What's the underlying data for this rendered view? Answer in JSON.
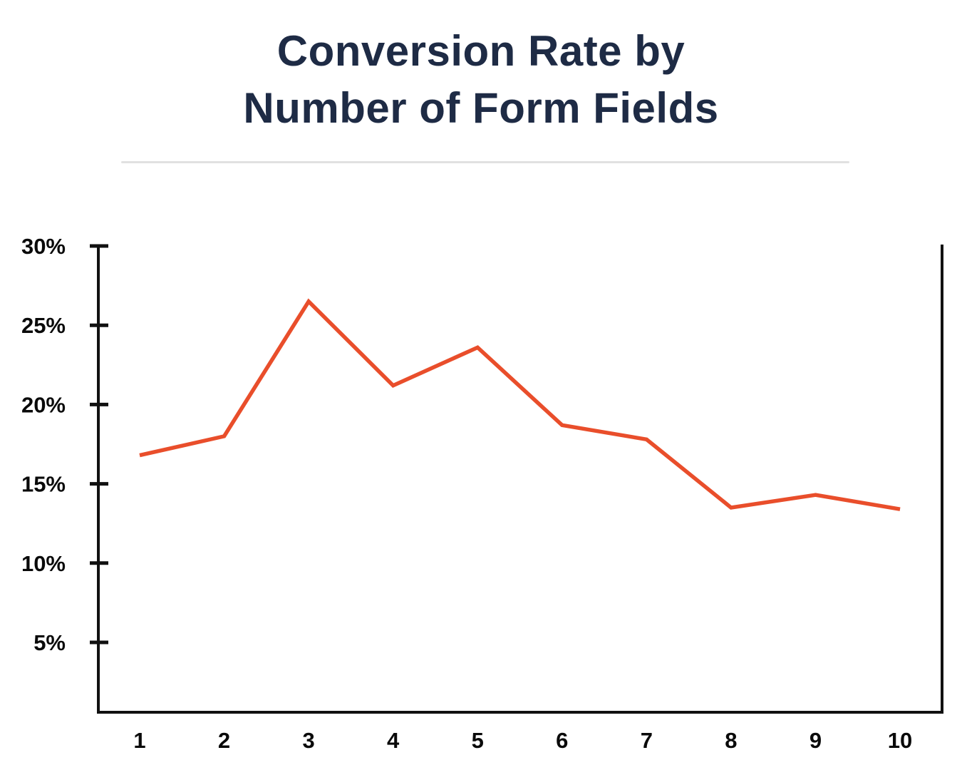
{
  "title": {
    "line1": "Conversion Rate by",
    "line2": "Number of Form Fields"
  },
  "colors": {
    "title_text": "#1E2B45",
    "line_accent": "#E94E2B",
    "axis": "#111111",
    "divider": "#e1e1e1"
  },
  "chart_data": {
    "type": "line",
    "title": "Conversion Rate by Number of Form Fields",
    "x": [
      1,
      2,
      3,
      4,
      5,
      6,
      7,
      8,
      9,
      10
    ],
    "x_labels": [
      "1",
      "2",
      "3",
      "4",
      "5",
      "6",
      "7",
      "8",
      "9",
      "10"
    ],
    "series": [
      {
        "name": "conversion-rate",
        "values": [
          16.8,
          18.0,
          26.5,
          21.2,
          23.6,
          18.7,
          17.8,
          13.5,
          14.3,
          13.4
        ]
      }
    ],
    "xlabel": "",
    "ylabel": "",
    "y_ticks": [
      30,
      25,
      20,
      15,
      10,
      5
    ],
    "y_tick_labels": [
      "30%",
      "25%",
      "20%",
      "15%",
      "10%",
      "5%"
    ],
    "ylim": [
      0.5,
      30
    ],
    "grid": false,
    "legend": "none",
    "line_color": "#E94E2B",
    "axis_color": "#111111"
  }
}
